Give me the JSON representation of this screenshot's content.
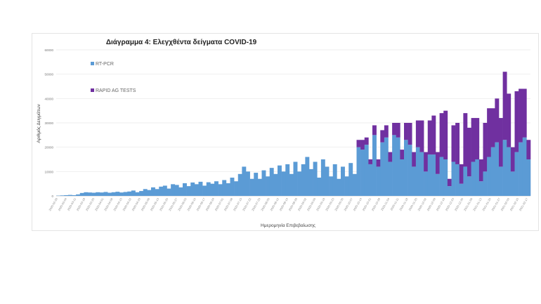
{
  "chart_data": {
    "type": "bar",
    "stacked": true,
    "title": "Διάγραμμα 4: Ελεγχθέντα δείγματα COVID-19",
    "xlabel": "Ημερομηνία Επιβεβαίωσης",
    "ylabel": "Αριθμός Δειγμάτων",
    "ylim": [
      0,
      60000
    ],
    "yticks": [
      0,
      10000,
      20000,
      30000,
      40000,
      50000,
      60000
    ],
    "grid": true,
    "legend_position": "top-left",
    "x_tick_start": "2020-02-26",
    "x_tick_interval_days": 7,
    "x_tick_count": 52,
    "bin_days": 3,
    "series": [
      {
        "name": "RT-PCR",
        "color": "#5b9bd5",
        "values": [
          100,
          200,
          300,
          400,
          300,
          600,
          1200,
          1500,
          1400,
          1300,
          1500,
          1400,
          1600,
          1300,
          1500,
          1700,
          1400,
          1600,
          1800,
          2200,
          1500,
          2000,
          2800,
          2400,
          3500,
          2800,
          3800,
          4200,
          3000,
          4800,
          4500,
          3500,
          5200,
          4000,
          5500,
          4800,
          5800,
          4200,
          5600,
          5000,
          6000,
          4800,
          6500,
          5200,
          7500,
          6000,
          9000,
          12000,
          10000,
          7000,
          9500,
          7000,
          10500,
          8000,
          11500,
          9000,
          12500,
          10000,
          13000,
          9000,
          14000,
          10000,
          13000,
          16000,
          11000,
          14000,
          7500,
          15000,
          12000,
          8000,
          13000,
          7000,
          12000,
          8000,
          13500,
          9000,
          20000,
          19000,
          21000,
          13000,
          25000,
          12000,
          22000,
          24000,
          14000,
          25000,
          24000,
          15000,
          23000,
          21000,
          12000,
          20000,
          18000,
          10000,
          17000,
          17000,
          9000,
          16000,
          15000,
          4000,
          14000,
          13000,
          5000,
          12000,
          8000,
          14000,
          15000,
          6000,
          10000,
          16000,
          20000,
          22000,
          12000,
          23000,
          20000,
          10000,
          18000,
          22000,
          24000,
          15000
        ]
      },
      {
        "name": "RAPID AG TESTS",
        "color": "#7030a0",
        "values": [
          0,
          0,
          0,
          0,
          0,
          0,
          0,
          0,
          0,
          0,
          0,
          0,
          0,
          0,
          0,
          0,
          0,
          0,
          0,
          0,
          0,
          0,
          0,
          0,
          0,
          0,
          0,
          0,
          0,
          0,
          0,
          0,
          0,
          0,
          0,
          0,
          0,
          0,
          0,
          0,
          0,
          0,
          0,
          0,
          0,
          0,
          0,
          0,
          0,
          0,
          0,
          0,
          0,
          0,
          0,
          0,
          0,
          0,
          0,
          0,
          0,
          0,
          0,
          0,
          0,
          0,
          0,
          0,
          0,
          0,
          0,
          0,
          0,
          0,
          0,
          0,
          3000,
          4000,
          3000,
          2000,
          4000,
          3000,
          5000,
          5000,
          4000,
          5000,
          6000,
          4000,
          7000,
          9000,
          6000,
          11000,
          13000,
          8000,
          14000,
          16000,
          9000,
          18000,
          20000,
          3000,
          15000,
          17000,
          8000,
          22000,
          20000,
          18000,
          17000,
          9000,
          20000,
          20000,
          16000,
          18000,
          20000,
          28000,
          22000,
          10000,
          25000,
          22000,
          20000,
          8000
        ]
      }
    ]
  }
}
